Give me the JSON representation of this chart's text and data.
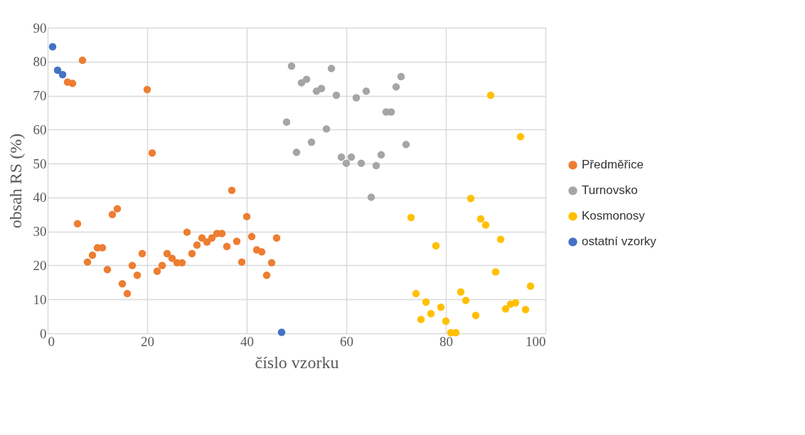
{
  "chart_data": {
    "type": "scatter",
    "xlabel": "číslo vzorku",
    "ylabel": "obsah RS (%)",
    "xlim": [
      0,
      100
    ],
    "xticks": [
      0,
      20,
      40,
      60,
      80,
      100
    ],
    "ylim": [
      0,
      90
    ],
    "yticks": [
      0,
      10,
      20,
      30,
      40,
      50,
      60,
      70,
      80,
      90
    ],
    "grid": true,
    "legend": "right",
    "marker": "circle",
    "series": [
      {
        "name": "Předměřice",
        "color": "#ed7d31",
        "x": [
          4,
          5,
          6,
          7,
          8,
          9,
          10,
          11,
          12,
          13,
          14,
          15,
          16,
          17,
          18,
          19,
          20,
          21,
          22,
          23,
          24,
          25,
          26,
          27,
          28,
          29,
          30,
          31,
          32,
          33,
          34,
          35,
          36,
          37,
          38,
          39,
          40,
          41,
          42,
          43,
          44,
          45,
          46
        ],
        "values": [
          74,
          73.6,
          32.3,
          80.4,
          21,
          23,
          25.2,
          25.2,
          18.8,
          35,
          36.7,
          14.6,
          11.7,
          20,
          17.1,
          23.5,
          71.8,
          53.1,
          18.3,
          20,
          23.5,
          22.1,
          20.8,
          20.8,
          29.8,
          23.5,
          26,
          28.1,
          26.9,
          28.1,
          29.4,
          29.4,
          25.6,
          42.1,
          27.1,
          21,
          34.4,
          28.5,
          24.6,
          24,
          17.1,
          20.8,
          28.1
        ]
      },
      {
        "name": "Turnovsko",
        "color": "#a5a5a5",
        "x": [
          48,
          49,
          50,
          51,
          52,
          53,
          54,
          55,
          56,
          57,
          58,
          59,
          60,
          61,
          62,
          63,
          64,
          65,
          66,
          67,
          68,
          69,
          70,
          71,
          72
        ],
        "values": [
          62.2,
          78.7,
          53.3,
          73.8,
          74.8,
          56.3,
          71.3,
          72.1,
          60.2,
          78,
          70.1,
          51.9,
          50.1,
          51.9,
          69.4,
          50.1,
          71.3,
          40.1,
          49.4,
          52.6,
          65.2,
          65.2,
          72.6,
          75.6,
          55.6
        ]
      },
      {
        "name": "Kosmonosy",
        "color": "#ffc000",
        "x": [
          73,
          74,
          75,
          76,
          77,
          78,
          79,
          80,
          81,
          82,
          83,
          84,
          85,
          86,
          87,
          88,
          89,
          90,
          91,
          92,
          93,
          94,
          95,
          96,
          97
        ],
        "values": [
          34.1,
          11.7,
          4.1,
          9.2,
          5.8,
          25.8,
          7.7,
          3.6,
          0.2,
          0.2,
          12.2,
          9.7,
          39.7,
          5.3,
          33.7,
          31.9,
          70.1,
          18.1,
          27.7,
          7.2,
          8.6,
          9,
          57.9,
          7,
          13.9
        ]
      },
      {
        "name": "ostatní vzorky",
        "color": "#4472c4",
        "x": [
          1,
          2,
          3,
          47
        ],
        "values": [
          84.4,
          77.5,
          76.2,
          0.3
        ]
      }
    ]
  }
}
